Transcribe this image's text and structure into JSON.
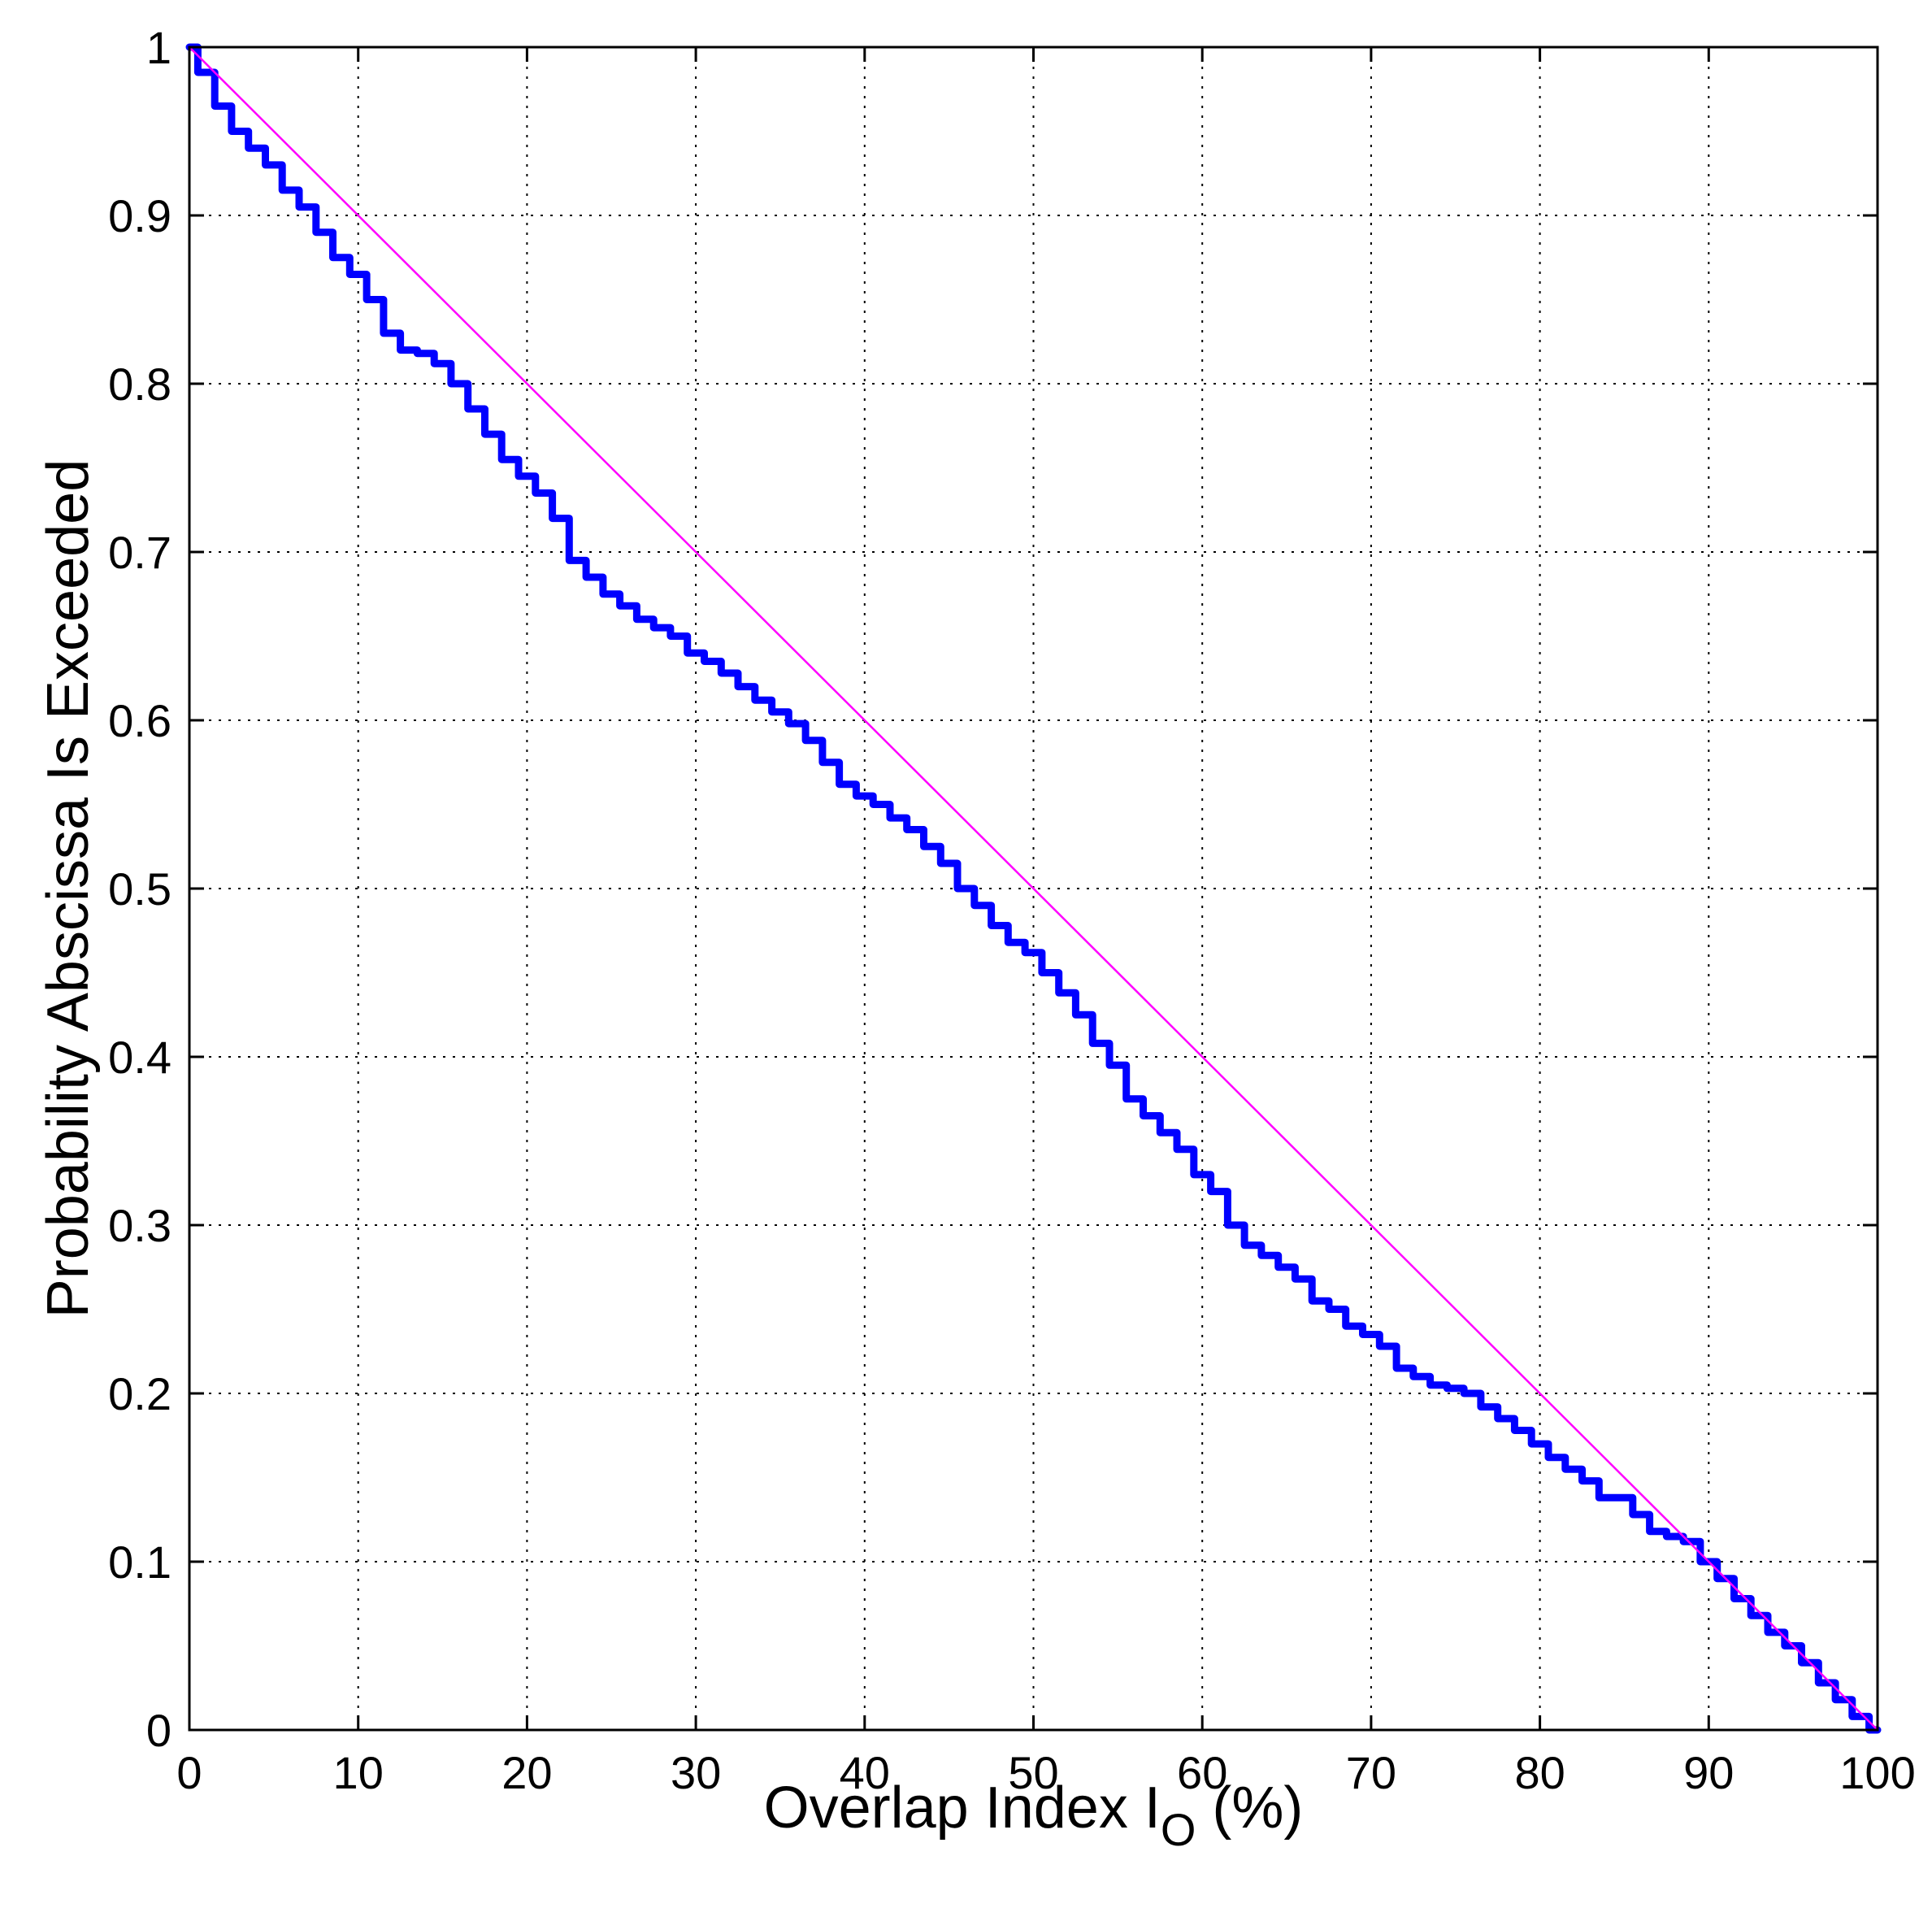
{
  "chart_data": {
    "type": "line",
    "title": "",
    "xlabel": "Overlap Index I",
    "xlabel_subscript": "O",
    "xlabel_suffix": " (%)",
    "ylabel": "Probability Abscissa Is Exceeded",
    "xlim": [
      0,
      100
    ],
    "ylim": [
      0,
      1
    ],
    "xticks": [
      0,
      10,
      20,
      30,
      40,
      50,
      60,
      70,
      80,
      90,
      100
    ],
    "yticks": [
      0,
      0.1,
      0.2,
      0.3,
      0.4,
      0.5,
      0.6,
      0.7,
      0.8,
      0.9,
      1
    ],
    "grid": true,
    "grid_style": "dotted",
    "legend": "none",
    "series": [
      {
        "color": "#0000ff",
        "style": "thick-step",
        "x": [
          0,
          1,
          2,
          3,
          4,
          5,
          6,
          7,
          8,
          9,
          10,
          11,
          12,
          13,
          14,
          15,
          16,
          17,
          18,
          19,
          20,
          21,
          22,
          23,
          24,
          25,
          26,
          27,
          28,
          29,
          30,
          31,
          32,
          33,
          34,
          35,
          36,
          37,
          38,
          39,
          40,
          41,
          42,
          43,
          44,
          45,
          46,
          47,
          48,
          49,
          50,
          51,
          52,
          53,
          54,
          55,
          56,
          57,
          58,
          59,
          60,
          61,
          62,
          63,
          64,
          65,
          66,
          67,
          68,
          69,
          70,
          71,
          72,
          73,
          74,
          75,
          76,
          77,
          78,
          79,
          80,
          81,
          82,
          83,
          84,
          85,
          86,
          87,
          88,
          89,
          90,
          91,
          92,
          93,
          94,
          95,
          96,
          97,
          98,
          99,
          100
        ],
        "y": [
          1.0,
          0.985,
          0.965,
          0.95,
          0.94,
          0.93,
          0.915,
          0.905,
          0.89,
          0.875,
          0.865,
          0.85,
          0.83,
          0.82,
          0.818,
          0.812,
          0.8,
          0.785,
          0.77,
          0.755,
          0.745,
          0.735,
          0.72,
          0.695,
          0.685,
          0.675,
          0.668,
          0.66,
          0.655,
          0.65,
          0.64,
          0.635,
          0.628,
          0.62,
          0.612,
          0.605,
          0.598,
          0.588,
          0.575,
          0.562,
          0.555,
          0.55,
          0.542,
          0.535,
          0.525,
          0.515,
          0.5,
          0.49,
          0.478,
          0.468,
          0.462,
          0.45,
          0.438,
          0.425,
          0.408,
          0.395,
          0.375,
          0.365,
          0.355,
          0.345,
          0.33,
          0.32,
          0.3,
          0.288,
          0.282,
          0.275,
          0.268,
          0.255,
          0.25,
          0.24,
          0.235,
          0.228,
          0.215,
          0.21,
          0.205,
          0.203,
          0.2,
          0.192,
          0.185,
          0.178,
          0.17,
          0.162,
          0.155,
          0.148,
          0.138,
          0.138,
          0.128,
          0.118,
          0.115,
          0.112,
          0.1,
          0.09,
          0.078,
          0.068,
          0.058,
          0.05,
          0.04,
          0.028,
          0.018,
          0.008,
          0.0
        ]
      },
      {
        "color": "#ff00ff",
        "style": "thin",
        "x": [
          0,
          100
        ],
        "y": [
          1,
          0
        ]
      }
    ]
  }
}
